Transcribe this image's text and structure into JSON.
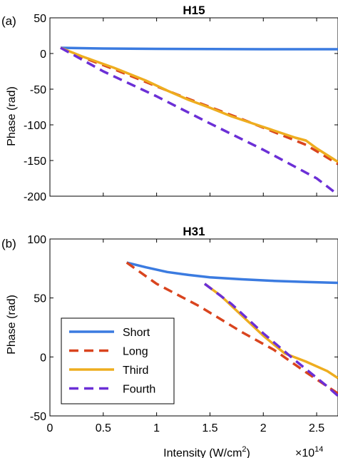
{
  "chart_data": [
    {
      "type": "line",
      "panel_label": "(a)",
      "title": "H15",
      "xlabel": "",
      "ylabel": "Phase (rad)",
      "xlim": [
        0,
        2.7
      ],
      "ylim": [
        -200,
        50
      ],
      "xticks": [
        0,
        0.5,
        1,
        1.5,
        2,
        2.5
      ],
      "yticks": [
        -200,
        -150,
        -100,
        -50,
        0,
        50
      ],
      "xtick_labels": [
        "0",
        "0.5",
        "1",
        "1.5",
        "2",
        "2.5"
      ],
      "ytick_labels": [
        "-200",
        "-150",
        "-100",
        "-50",
        "0",
        "50"
      ],
      "grid": false,
      "series": [
        {
          "key": "short",
          "color": "#3b7be0",
          "dash": "solid",
          "x": [
            0.1,
            0.5,
            1.0,
            1.5,
            2.0,
            2.5,
            2.7
          ],
          "y": [
            8,
            7,
            6.5,
            6.2,
            6,
            6,
            6
          ]
        },
        {
          "key": "long",
          "color": "#d9441e",
          "dash": "dashed",
          "x": [
            0.1,
            0.3,
            0.6,
            0.9,
            1.2,
            1.5,
            1.8,
            2.1,
            2.4,
            2.7
          ],
          "y": [
            8,
            -5,
            -22,
            -40,
            -58,
            -75,
            -92,
            -110,
            -128,
            -155
          ]
        },
        {
          "key": "third",
          "color": "#eead1f",
          "dash": "solid",
          "x": [
            0.1,
            0.3,
            0.6,
            0.9,
            1.0,
            1.1,
            1.3,
            1.5,
            1.7,
            1.9,
            2.1,
            2.3,
            2.4,
            2.5,
            2.7
          ],
          "y": [
            8,
            -4,
            -20,
            -38,
            -45,
            -52,
            -65,
            -76,
            -88,
            -98,
            -108,
            -118,
            -122,
            -133,
            -152
          ]
        },
        {
          "key": "fourth",
          "color": "#6b2fd6",
          "dash": "dashed",
          "x": [
            0.1,
            0.5,
            1.0,
            1.5,
            2.0,
            2.5,
            2.7
          ],
          "y": [
            8,
            -25,
            -60,
            -98,
            -135,
            -175,
            -198
          ]
        }
      ]
    },
    {
      "type": "line",
      "panel_label": "(b)",
      "title": "H31",
      "xlabel": "Intensity (W/cm",
      "xlabel_sup": "2",
      "xlabel_tail": ")",
      "exponent": "×10",
      "exponent_sup": "14",
      "ylabel": "Phase (rad)",
      "xlim": [
        0,
        2.7
      ],
      "ylim": [
        -50,
        100
      ],
      "xticks": [
        0,
        0.5,
        1,
        1.5,
        2,
        2.5
      ],
      "yticks": [
        -50,
        0,
        50,
        100
      ],
      "xtick_labels": [
        "0",
        "0.5",
        "1",
        "1.5",
        "2",
        "2.5"
      ],
      "ytick_labels": [
        "-50",
        "0",
        "50",
        "100"
      ],
      "grid": false,
      "legend_position": "bottom-left",
      "series": [
        {
          "key": "short",
          "name": "Short",
          "color": "#3b7be0",
          "dash": "solid",
          "x": [
            0.72,
            0.9,
            1.1,
            1.3,
            1.5,
            1.8,
            2.1,
            2.4,
            2.7
          ],
          "y": [
            80,
            76,
            72,
            69.5,
            67.5,
            65.8,
            64.5,
            63.5,
            62.8
          ]
        },
        {
          "key": "long",
          "name": "Long",
          "color": "#d9441e",
          "dash": "dashed",
          "x": [
            0.72,
            1.0,
            1.4,
            1.8,
            2.1,
            2.4,
            2.7
          ],
          "y": [
            80,
            62,
            43,
            21,
            6,
            -13,
            -31
          ]
        },
        {
          "key": "third",
          "name": "Third",
          "color": "#eead1f",
          "dash": "solid",
          "x": [
            1.45,
            1.6,
            1.8,
            2.0,
            2.2,
            2.4,
            2.6,
            2.7
          ],
          "y": [
            62,
            52,
            35,
            18,
            3,
            -4,
            -12,
            -18
          ]
        },
        {
          "key": "fourth",
          "name": "Fourth",
          "color": "#6b2fd6",
          "dash": "dashed",
          "x": [
            1.45,
            1.7,
            2.0,
            2.3,
            2.6,
            2.7
          ],
          "y": [
            62,
            45,
            20,
            -3,
            -25,
            -33
          ]
        }
      ]
    }
  ]
}
